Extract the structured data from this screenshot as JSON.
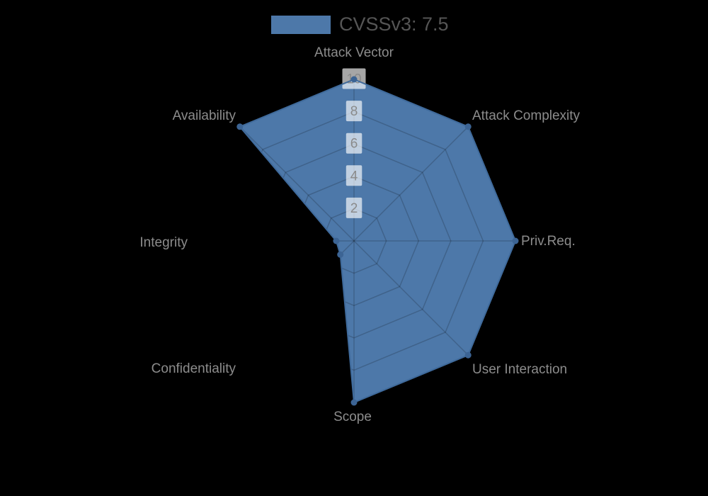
{
  "legend": {
    "label": "CVSSv3: 7.5"
  },
  "chart_data": {
    "type": "radar",
    "title": "",
    "legend": {
      "label": "CVSSv3: 7.5",
      "position": "top-center"
    },
    "direction": "clockwise-from-top",
    "categories": [
      "Attack Vector",
      "Attack Complexity",
      "Priv.Req.",
      "User Interaction",
      "Scope",
      "Confidentiality",
      "Integrity",
      "Availability"
    ],
    "series": [
      {
        "name": "CVSSv3: 7.5",
        "values": [
          10,
          10,
          10,
          10,
          10,
          1.2,
          1.1,
          10
        ]
      }
    ],
    "axis_min": 0,
    "axis_max": 10,
    "tick_interval": 2,
    "tick_labels": [
      "2",
      "4",
      "6",
      "8",
      "10"
    ],
    "grid": true,
    "grid_shape": "polygon",
    "colors": {
      "fill": "#4d78a9",
      "edge": "#3f6a9b",
      "marker": "#3c6494",
      "grid_line": "rgba(0,0,0,0.18)",
      "axis_label": "#8c8c8c",
      "tick_text": "#8a8a8a",
      "tick_backplate": "rgba(255,255,255,0.65)",
      "legend_text": "#555555",
      "background": "#000000"
    }
  }
}
